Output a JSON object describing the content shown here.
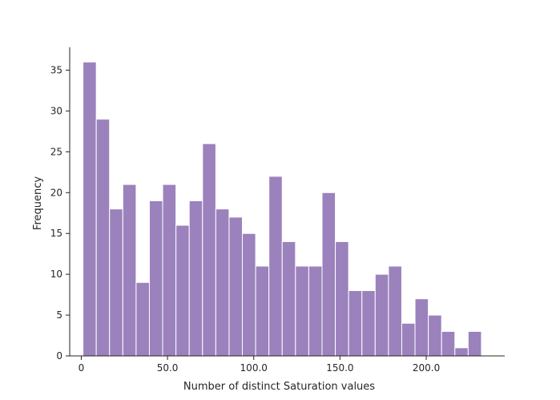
{
  "chart_data": {
    "type": "bar",
    "subtype": "histogram",
    "title": "",
    "xlabel": "Number of distinct Saturation values",
    "ylabel": "Frequency",
    "bar_color": "#9b82bc",
    "bar_edge_color": "#ffffff",
    "axis_color": "#262626",
    "grid": false,
    "xlim": [
      -6.7,
      245.5
    ],
    "ylim": [
      0,
      37.8
    ],
    "bin_start": 1.0,
    "bin_width": 7.7,
    "values": [
      36,
      29,
      18,
      21,
      9,
      19,
      21,
      16,
      19,
      26,
      18,
      17,
      15,
      11,
      22,
      14,
      11,
      11,
      20,
      14,
      8,
      8,
      10,
      11,
      4,
      7,
      5,
      3,
      1,
      3
    ],
    "x_ticks": [
      {
        "value": 0,
        "label": "0"
      },
      {
        "value": 50,
        "label": "50.0"
      },
      {
        "value": 100,
        "label": "100.0"
      },
      {
        "value": 150,
        "label": "150.0"
      },
      {
        "value": 200,
        "label": "200.0"
      }
    ],
    "y_ticks": [
      {
        "value": 0,
        "label": "0"
      },
      {
        "value": 5,
        "label": "5"
      },
      {
        "value": 10,
        "label": "10"
      },
      {
        "value": 15,
        "label": "15"
      },
      {
        "value": 20,
        "label": "20"
      },
      {
        "value": 25,
        "label": "25"
      },
      {
        "value": 30,
        "label": "30"
      },
      {
        "value": 35,
        "label": "35"
      }
    ]
  }
}
